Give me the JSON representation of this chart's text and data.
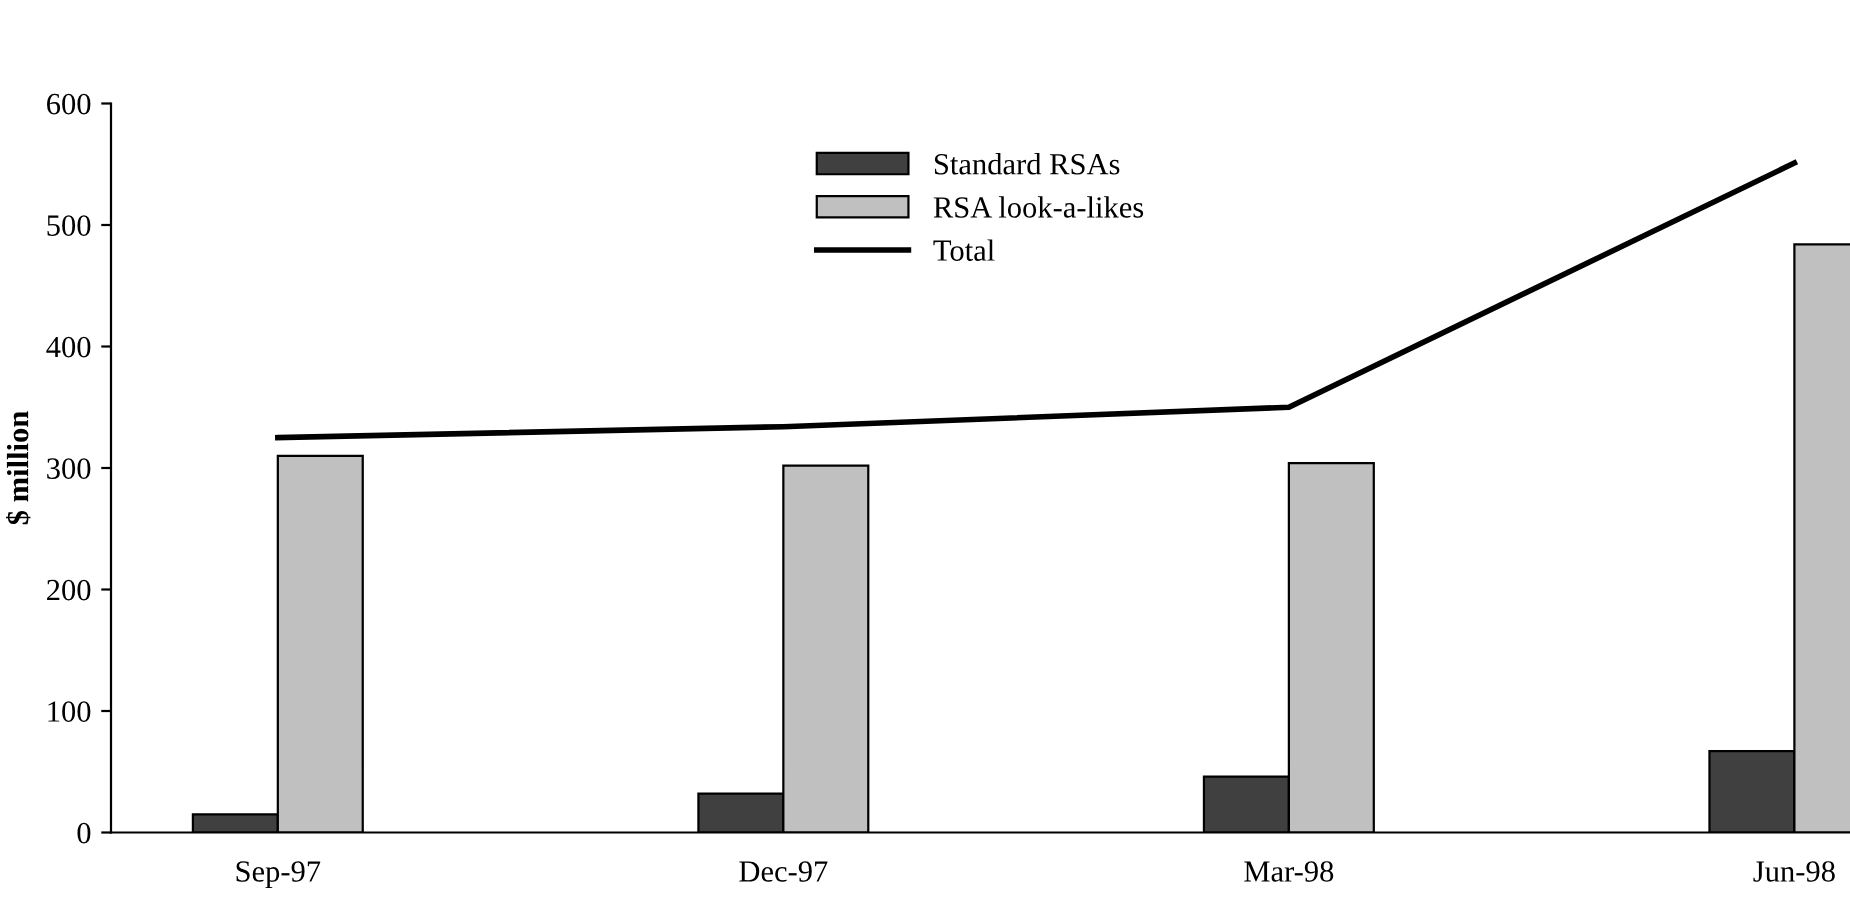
{
  "chart_data": {
    "type": "bar",
    "ylabel": "$ million",
    "categories": [
      "Sep-97",
      "Dec-97",
      "Mar-98",
      "Jun-98"
    ],
    "series": [
      {
        "name": "Standard RSAs",
        "color": "#404040",
        "values": [
          15,
          32,
          46,
          67
        ]
      },
      {
        "name": "RSA look-a-likes",
        "color": "#c0c0c0",
        "values": [
          310,
          302,
          304,
          484
        ]
      },
      {
        "name": "Total",
        "type": "line",
        "color": "#000000",
        "values": [
          325,
          334,
          350,
          551
        ]
      }
    ],
    "ylim": [
      0,
      600
    ],
    "yticks": [
      0,
      100,
      200,
      300,
      400,
      500,
      600
    ],
    "grid": false,
    "legend": "top",
    "line_style": "solid",
    "marker": "none"
  }
}
